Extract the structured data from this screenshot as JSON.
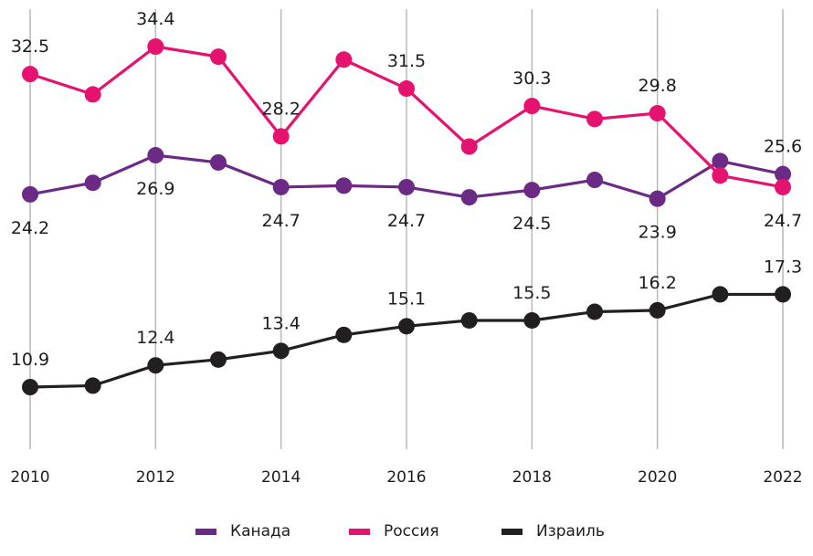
{
  "chart_data": {
    "type": "line",
    "title": "",
    "xlabel": "",
    "ylabel": "",
    "x": [
      2010,
      2011,
      2012,
      2013,
      2014,
      2015,
      2016,
      2017,
      2018,
      2019,
      2020,
      2021,
      2022
    ],
    "x_tick_labels": [
      "2010",
      "2012",
      "2014",
      "2016",
      "2018",
      "2020",
      "2022"
    ],
    "ylim": [
      7,
      35
    ],
    "grid": "vertical at labeled years",
    "legend_position": "bottom",
    "series": [
      {
        "name": "Канада",
        "color": "#6b2a86",
        "values": [
          24.2,
          25.0,
          26.9,
          26.4,
          24.7,
          24.8,
          24.7,
          24.0,
          24.5,
          25.2,
          23.9,
          26.5,
          25.6
        ],
        "labels": {
          "2010": "24.2",
          "2012": "26.9",
          "2014": "24.7",
          "2016": "24.7",
          "2018": "24.5",
          "2020": "23.9",
          "2022": "25.6"
        },
        "label_side": {
          "2010": "below",
          "2012": "below",
          "2014": "below",
          "2016": "below",
          "2018": "below",
          "2020": "below",
          "2022": "above"
        }
      },
      {
        "name": "Россия",
        "color": "#e5126f",
        "values": [
          32.5,
          31.1,
          34.4,
          33.7,
          28.2,
          33.5,
          31.5,
          27.5,
          30.3,
          29.4,
          29.8,
          25.5,
          24.7
        ],
        "labels": {
          "2010": "32.5",
          "2012": "34.4",
          "2014": "28.2",
          "2016": "31.5",
          "2018": "30.3",
          "2020": "29.8",
          "2022": "24.7"
        },
        "label_side": {
          "2010": "above",
          "2012": "above",
          "2014": "above",
          "2016": "above",
          "2018": "above",
          "2020": "above",
          "2022": "below"
        }
      },
      {
        "name": "Израиль",
        "color": "#221f20",
        "values": [
          10.9,
          11.0,
          12.4,
          12.8,
          13.4,
          14.5,
          15.1,
          15.5,
          15.5,
          16.1,
          16.2,
          17.3,
          17.3
        ],
        "labels": {
          "2010": "10.9",
          "2012": "12.4",
          "2014": "13.4",
          "2016": "15.1",
          "2018": "15.5",
          "2020": "16.2",
          "2022": "17.3"
        },
        "label_side": {
          "2010": "above",
          "2012": "above",
          "2014": "above",
          "2016": "above",
          "2018": "above",
          "2020": "above",
          "2022": "above"
        }
      }
    ]
  }
}
